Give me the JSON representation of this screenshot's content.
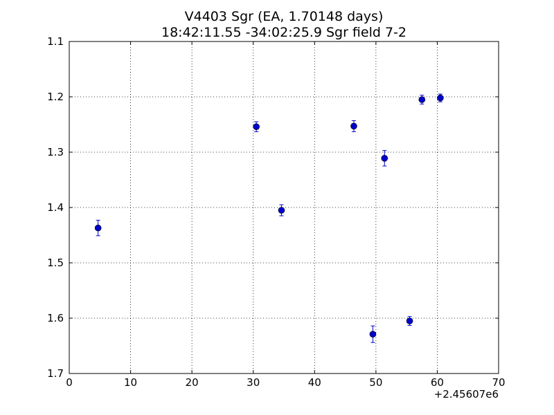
{
  "chart_data": {
    "type": "scatter",
    "title_lines": [
      "V4403 Sgr (EA, 1.70148 days)",
      "18:42:11.55 -34:02:25.9 Sgr field 7-2"
    ],
    "xlabel": "",
    "ylabel": "",
    "x_offset_label": "+2.45607e6",
    "xlim": [
      0,
      70
    ],
    "ylim": [
      1.1,
      1.7
    ],
    "y_inverted": true,
    "x_ticks": [
      0,
      10,
      20,
      30,
      40,
      50,
      60,
      70
    ],
    "x_tick_labels": [
      "0",
      "10",
      "20",
      "30",
      "40",
      "50",
      "60",
      "70"
    ],
    "y_ticks": [
      1.1,
      1.2,
      1.3,
      1.4,
      1.5,
      1.6,
      1.7
    ],
    "y_tick_labels": [
      "1.1",
      "1.2",
      "1.3",
      "1.4",
      "1.5",
      "1.6",
      "1.7"
    ],
    "grid": true,
    "marker_color": "#0000cc",
    "errorbar_color": "#0000cc",
    "points": [
      {
        "x": 4.7,
        "y": 1.437,
        "err": 0.014
      },
      {
        "x": 30.5,
        "y": 1.254,
        "err": 0.009
      },
      {
        "x": 34.6,
        "y": 1.405,
        "err": 0.01
      },
      {
        "x": 46.4,
        "y": 1.253,
        "err": 0.01
      },
      {
        "x": 49.5,
        "y": 1.629,
        "err": 0.015
      },
      {
        "x": 51.4,
        "y": 1.311,
        "err": 0.014
      },
      {
        "x": 55.5,
        "y": 1.605,
        "err": 0.008
      },
      {
        "x": 57.5,
        "y": 1.205,
        "err": 0.008
      },
      {
        "x": 60.5,
        "y": 1.202,
        "err": 0.007
      }
    ]
  }
}
